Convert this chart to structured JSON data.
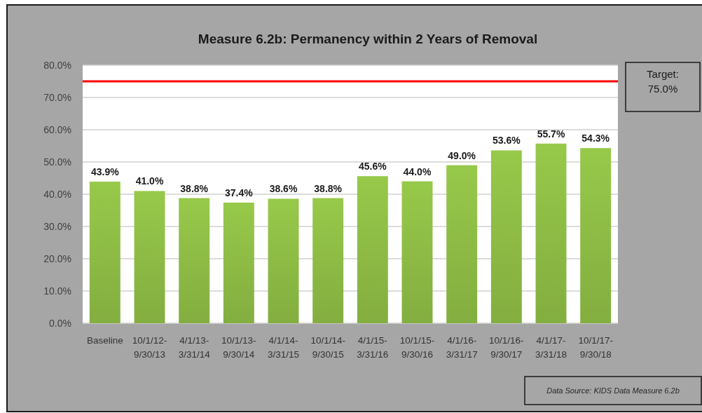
{
  "chart_data": {
    "type": "bar",
    "title": "Measure 6.2b: Permanency within 2 Years of Removal",
    "categories": [
      "Baseline",
      "10/1/12- 9/30/13",
      "4/1/13- 3/31/14",
      "10/1/13- 9/30/14",
      "4/1/14- 3/31/15",
      "10/1/14- 9/30/15",
      "4/1/15- 3/31/16",
      "10/1/15- 9/30/16",
      "4/1/16- 3/31/17",
      "10/1/16- 9/30/17",
      "4/1/17- 3/31/18",
      "10/1/17- 9/30/18"
    ],
    "values": [
      43.9,
      41.0,
      38.8,
      37.4,
      38.6,
      38.8,
      45.6,
      44.0,
      49.0,
      53.6,
      55.7,
      54.3
    ],
    "color": "#8dbb45",
    "value_labels": [
      "43.9%",
      "41.0%",
      "38.8%",
      "37.4%",
      "38.6%",
      "38.8%",
      "45.6%",
      "44.0%",
      "49.0%",
      "53.6%",
      "55.7%",
      "54.3%"
    ],
    "ylim": [
      0,
      80
    ],
    "yticks": [
      {
        "value": 0,
        "label": "0.0%"
      },
      {
        "value": 10,
        "label": "10.0%"
      },
      {
        "value": 20,
        "label": "20.0%"
      },
      {
        "value": 30,
        "label": "30.0%"
      },
      {
        "value": 40,
        "label": "40.0%"
      },
      {
        "value": 50,
        "label": "50.0%"
      },
      {
        "value": 60,
        "label": "60.0%"
      },
      {
        "value": 70,
        "label": "70.0%"
      },
      {
        "value": 80,
        "label": "80.0%"
      }
    ],
    "grid": "y",
    "ref_lines": [
      {
        "axis": "y",
        "value": 75,
        "label": "Target: 75.0%",
        "color": "#ff0000"
      }
    ],
    "annotations": [
      "Data Source: KIDS Data Measure 6.2b"
    ]
  }
}
